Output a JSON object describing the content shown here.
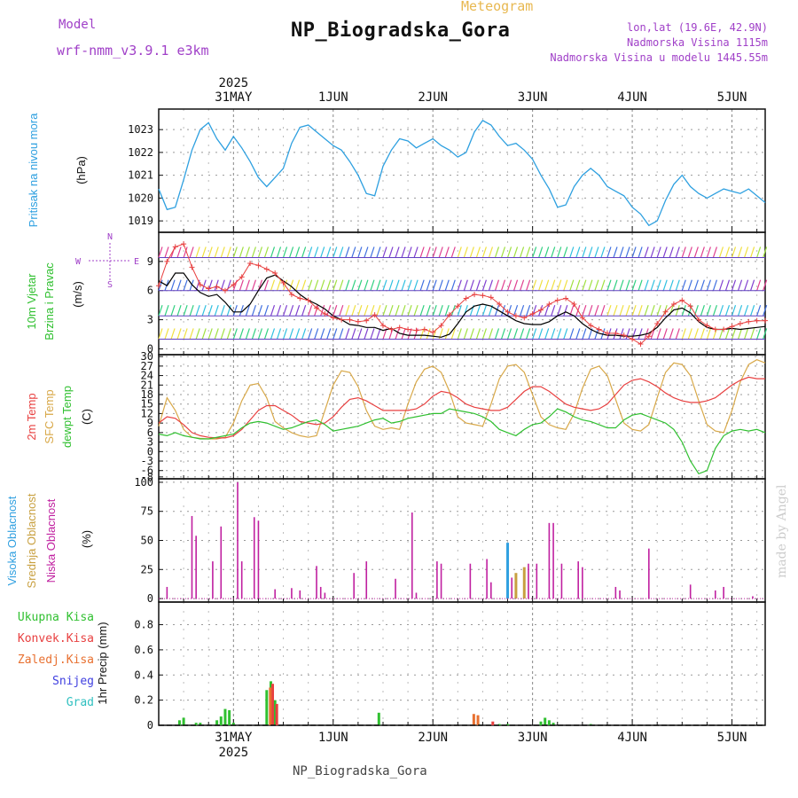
{
  "header": {
    "model_label": "Model",
    "model_value": "wrf-nmm_v3.9.1 e3km",
    "title": "NP_Biogradska_Gora",
    "subtitle": "Meteogram",
    "coords": "lon,lat (19.6E, 42.9N)",
    "elevation": "Nadmorska Visina 1115m",
    "model_elevation": "Nadmorska Visina u modelu 1445.55m"
  },
  "footer": {
    "station": "NP_Biogradska_Gora",
    "signature": "made by Angel"
  },
  "time_axis": {
    "year": "2025",
    "days": [
      "31MAY",
      "1JUN",
      "2JUN",
      "3JUN",
      "4JUN",
      "5JUN"
    ],
    "start_hour_before_first_day": 18,
    "hours_total": 146
  },
  "colors": {
    "pressure": "#2ea0e0",
    "temp2m": "#e84040",
    "sfc_temp": "#d8a848",
    "dewpt": "#30c030",
    "wind_speed": "#000000",
    "gust": "#e84040",
    "high_cloud": "#30a0e0",
    "mid_cloud": "#c8a040",
    "low_cloud": "#c020a0",
    "precip_total": "#30c030",
    "precip_conv": "#e84040",
    "precip_frozen": "#e87030",
    "precip_snow": "#4040e0",
    "precip_hail": "#30c0c0"
  },
  "chart_data": [
    {
      "type": "line",
      "title": "Pritisak na nivou mora",
      "ylabel": "(hPa)",
      "ylim": [
        1018.5,
        1023.9
      ],
      "yticks": [
        1019,
        1020,
        1021,
        1022,
        1023
      ],
      "x_hours": [
        0,
        2,
        4,
        6,
        8,
        10,
        12,
        14,
        16,
        18,
        20,
        22,
        24,
        26,
        28,
        30,
        32,
        34,
        36,
        38,
        40,
        42,
        44,
        46,
        48,
        50,
        52,
        54,
        56,
        58,
        60,
        62,
        64,
        66,
        68,
        70,
        72,
        74,
        76,
        78,
        80,
        82,
        84,
        86,
        88,
        90,
        92,
        94,
        96,
        98,
        100,
        102,
        104,
        106,
        108,
        110,
        112,
        114,
        116,
        118,
        120,
        122,
        124,
        126,
        128,
        130,
        132,
        134,
        136,
        138,
        140,
        142,
        144,
        146
      ],
      "series": [
        {
          "name": "Pressure",
          "values": [
            1020.4,
            1019.5,
            1019.6,
            1020.8,
            1022.1,
            1023.0,
            1023.3,
            1022.6,
            1022.1,
            1022.7,
            1022.2,
            1021.6,
            1020.9,
            1020.5,
            1020.9,
            1021.3,
            1022.4,
            1023.1,
            1023.2,
            1022.9,
            1022.6,
            1022.3,
            1022.1,
            1021.6,
            1021.0,
            1020.2,
            1020.1,
            1021.4,
            1022.1,
            1022.6,
            1022.5,
            1022.2,
            1022.4,
            1022.6,
            1022.3,
            1022.1,
            1021.8,
            1022.0,
            1022.9,
            1023.4,
            1023.2,
            1022.7,
            1022.3,
            1022.4,
            1022.1,
            1021.7,
            1021.0,
            1020.4,
            1019.6,
            1019.7,
            1020.5,
            1021.0,
            1021.3,
            1021.0,
            1020.5,
            1020.3,
            1020.1,
            1019.6,
            1019.3,
            1018.8,
            1019.0,
            1019.9,
            1020.6,
            1021.0,
            1020.5,
            1020.2,
            1020.0,
            1020.2,
            1020.4,
            1020.3,
            1020.2,
            1020.4,
            1020.1,
            1019.8
          ]
        }
      ]
    },
    {
      "type": "line",
      "title": "10m Vjetar Brzina i Pravac",
      "ylabel": "(m/s)",
      "ylim": [
        -0.6,
        12
      ],
      "yticks": [
        0,
        3,
        6,
        9
      ],
      "compass": [
        "N",
        "W",
        "E",
        "S"
      ],
      "series": [
        {
          "name": "Wind speed",
          "values": [
            7.0,
            6.5,
            7.8,
            7.8,
            6.6,
            5.8,
            5.4,
            5.6,
            4.8,
            3.8,
            3.8,
            4.6,
            6.0,
            7.3,
            7.6,
            7.0,
            6.4,
            5.6,
            5.0,
            4.6,
            4.1,
            3.4,
            3.0,
            2.5,
            2.4,
            2.2,
            2.2,
            1.9,
            2.1,
            1.6,
            1.4,
            1.4,
            1.4,
            1.3,
            1.2,
            1.5,
            2.6,
            3.8,
            4.4,
            4.6,
            4.4,
            3.9,
            3.4,
            2.9,
            2.6,
            2.5,
            2.5,
            2.8,
            3.4,
            3.8,
            3.4,
            2.6,
            2.0,
            1.6,
            1.4,
            1.4,
            1.3,
            1.3,
            1.4,
            1.6,
            2.2,
            3.2,
            4.0,
            4.2,
            3.7,
            2.8,
            2.2,
            2.0,
            2.0,
            2.1,
            2.0,
            2.1,
            2.2,
            2.3
          ]
        },
        {
          "name": "Gust",
          "values": [
            6.5,
            9.0,
            10.5,
            10.8,
            8.4,
            6.6,
            6.2,
            6.4,
            6.0,
            6.6,
            7.4,
            8.8,
            8.6,
            8.2,
            7.8,
            6.8,
            5.6,
            5.2,
            5.0,
            4.2,
            3.6,
            3.2,
            3.0,
            3.0,
            2.8,
            2.9,
            3.5,
            2.4,
            2.0,
            2.2,
            2.0,
            1.9,
            2.0,
            1.7,
            2.4,
            3.5,
            4.4,
            5.2,
            5.6,
            5.5,
            5.3,
            4.6,
            3.8,
            3.4,
            3.2,
            3.6,
            4.0,
            4.6,
            5.0,
            5.2,
            4.6,
            3.2,
            2.4,
            2.0,
            1.6,
            1.6,
            1.4,
            1.0,
            0.5,
            1.3,
            2.6,
            3.8,
            4.6,
            5.0,
            4.4,
            3.0,
            2.4,
            2.0,
            2.0,
            2.3,
            2.6,
            2.8,
            2.9,
            2.9
          ]
        }
      ],
      "barb_rows_mps": [
        1,
        3.4,
        6,
        9.4
      ]
    },
    {
      "type": "line",
      "title": "2m Temp / SFC Temp / dewpt Temp",
      "ylabel": "(C)",
      "ylim": [
        -8.6,
        30.6
      ],
      "yticks": [
        -8,
        -6,
        -3,
        0,
        3,
        6,
        9,
        12,
        15,
        18,
        21,
        24,
        27,
        30
      ],
      "series": [
        {
          "name": "2m Temp",
          "values": [
            9.0,
            11.0,
            10.5,
            8.5,
            6.0,
            5.0,
            4.5,
            4.3,
            4.3,
            5.0,
            7.0,
            10.0,
            13.0,
            14.5,
            14.5,
            13.0,
            11.5,
            9.5,
            9.0,
            8.5,
            9.0,
            11.0,
            14.0,
            16.5,
            17.0,
            16.0,
            14.5,
            13.0,
            13.0,
            13.0,
            13.0,
            13.5,
            15.0,
            17.5,
            19.0,
            18.5,
            17.0,
            15.0,
            14.0,
            13.5,
            13.0,
            13.0,
            14.0,
            16.5,
            19.0,
            20.5,
            20.5,
            19.0,
            17.0,
            15.0,
            14.0,
            13.5,
            13.0,
            13.5,
            15.0,
            18.0,
            21.0,
            22.5,
            23.0,
            22.0,
            20.5,
            18.5,
            17.0,
            16.0,
            15.5,
            15.5,
            16.0,
            17.0,
            19.0,
            21.0,
            22.5,
            23.5,
            23.0,
            23.0
          ]
        },
        {
          "name": "SFC Temp",
          "values": [
            8.0,
            17.0,
            13.0,
            7.0,
            4.5,
            4.2,
            4.0,
            4.0,
            4.5,
            9.0,
            16.0,
            21.0,
            21.5,
            17.0,
            9.5,
            7.5,
            6.0,
            5.0,
            4.5,
            5.0,
            13.0,
            21.0,
            25.5,
            25.0,
            20.5,
            13.0,
            8.0,
            7.0,
            7.5,
            7.0,
            15.0,
            22.0,
            26.0,
            27.0,
            25.0,
            19.0,
            11.0,
            9.0,
            8.5,
            8.0,
            15.0,
            23.0,
            27.0,
            27.5,
            25.0,
            18.0,
            11.0,
            8.5,
            7.5,
            7.0,
            12.0,
            20.0,
            26.0,
            27.0,
            24.0,
            16.5,
            9.0,
            7.0,
            6.5,
            8.5,
            17.0,
            25.0,
            28.0,
            27.5,
            24.0,
            16.0,
            8.5,
            6.5,
            6.0,
            13.0,
            22.0,
            27.5,
            29.0,
            28.0
          ]
        },
        {
          "name": "dewpt Temp",
          "values": [
            5.5,
            5.0,
            6.0,
            5.0,
            4.5,
            4.0,
            4.0,
            4.5,
            5.0,
            5.5,
            7.5,
            9.0,
            9.5,
            9.0,
            8.0,
            7.0,
            7.5,
            8.5,
            9.5,
            10.0,
            8.5,
            6.5,
            7.0,
            7.5,
            8.0,
            9.0,
            10.0,
            10.5,
            9.0,
            9.5,
            10.5,
            11.0,
            11.5,
            12.0,
            12.0,
            13.5,
            13.0,
            12.5,
            12.0,
            11.0,
            9.5,
            7.0,
            6.0,
            5.0,
            7.0,
            8.5,
            9.0,
            11.0,
            13.5,
            12.5,
            11.0,
            10.0,
            9.5,
            8.5,
            7.5,
            7.5,
            10.0,
            11.5,
            12.0,
            11.0,
            10.0,
            9.0,
            7.0,
            3.0,
            -3.0,
            -7.0,
            -6.0,
            1.0,
            5.0,
            6.5,
            7.0,
            6.5,
            7.0,
            6.0
          ]
        }
      ]
    },
    {
      "type": "bar",
      "title": "Visoka / Srednja / Niska Oblacnost",
      "ylabel": "(%)",
      "ylim": [
        -3,
        103
      ],
      "yticks": [
        0,
        25,
        50,
        75,
        100
      ],
      "series": [
        {
          "name": "Niska Oblacnost",
          "x_hours": [
            2,
            8,
            9,
            13,
            15,
            19,
            20,
            23,
            24,
            28,
            32,
            34,
            38,
            39,
            40,
            47,
            50,
            57,
            61,
            62,
            67,
            68,
            75,
            79,
            80,
            84,
            85,
            86,
            89,
            91,
            94,
            95,
            97,
            101,
            102,
            110,
            111,
            118,
            128,
            134,
            136,
            143
          ],
          "values": [
            10,
            71,
            54,
            32,
            62,
            100,
            32,
            70,
            67,
            8,
            9,
            7,
            28,
            10,
            5,
            22,
            32,
            17,
            74,
            5,
            32,
            30,
            30,
            34,
            14,
            5,
            18,
            7,
            30,
            30,
            65,
            65,
            30,
            32,
            27,
            10,
            7,
            43,
            12,
            7,
            10,
            2
          ]
        },
        {
          "name": "Visoka Oblacnost",
          "x_hours": [
            84
          ],
          "values": [
            48
          ]
        },
        {
          "name": "Srednja Oblacnost",
          "x_hours": [
            86,
            88
          ],
          "values": [
            22,
            27
          ]
        }
      ]
    },
    {
      "type": "bar",
      "title": "1hr Precip",
      "ylabel": "1hr Precip (mm)",
      "ylim": [
        0,
        0.98
      ],
      "yticks": [
        0,
        0.2,
        0.4,
        0.6,
        0.8
      ],
      "legend": [
        "Ukupna Kisa",
        "Konvek.Kisa",
        "Zaledj.Kisa",
        "Snijeg",
        "Grad"
      ],
      "series": [
        {
          "name": "Ukupna Kisa",
          "x_hours": [
            5,
            6,
            9,
            10,
            14,
            15,
            16,
            17,
            18,
            26,
            27,
            28,
            53,
            77,
            82,
            84,
            92,
            93,
            94,
            95,
            104
          ],
          "values": [
            0.04,
            0.06,
            0.02,
            0.02,
            0.04,
            0.07,
            0.13,
            0.12,
            0.02,
            0.28,
            0.35,
            0.2,
            0.1,
            0.01,
            0.01,
            0.01,
            0.03,
            0.06,
            0.04,
            0.02,
            0.01
          ]
        },
        {
          "name": "Konvek.Kisa",
          "x_hours": [
            27,
            28,
            80
          ],
          "values": [
            0.33,
            0.17,
            0.03
          ]
        },
        {
          "name": "Zaledj.Kisa",
          "x_hours": [
            75,
            76,
            26
          ],
          "values": [
            0.09,
            0.08,
            0.3
          ]
        }
      ]
    }
  ]
}
